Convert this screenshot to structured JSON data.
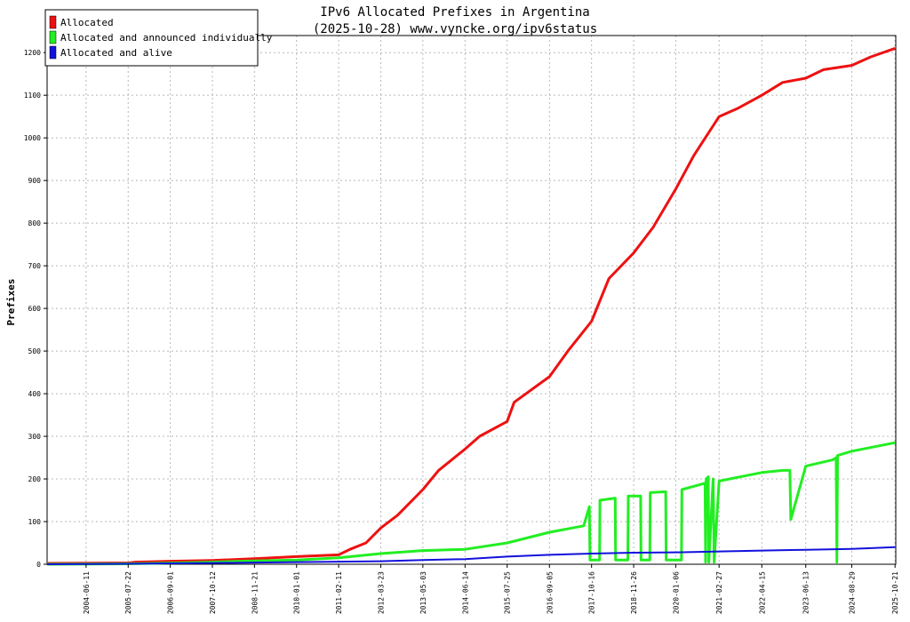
{
  "chart_data": {
    "type": "line",
    "title": "IPv6 Allocated Prefixes in Argentina",
    "subtitle": "(2025-10-28) www.vyncke.org/ipv6status",
    "ylabel": "Prefixes",
    "xlabel": "",
    "ylim": [
      0,
      1240
    ],
    "xlim": [
      "2003-06-01",
      "2025-10-28"
    ],
    "yticks": [
      0,
      100,
      200,
      300,
      400,
      500,
      600,
      700,
      800,
      900,
      1000,
      1100,
      1200
    ],
    "xticks": [
      "2004-06-11",
      "2005-07-22",
      "2006-09-01",
      "2007-10-12",
      "2008-11-21",
      "2010-01-01",
      "2011-02-11",
      "2012-03-23",
      "2013-05-03",
      "2014-06-14",
      "2015-07-25",
      "2016-09-05",
      "2017-10-16",
      "2018-11-26",
      "2020-01-06",
      "2021-02-27",
      "2022-04-15",
      "2023-06-13",
      "2024-08-29",
      "2025-10-21"
    ],
    "grid": true,
    "legend_position": "top-left",
    "series": [
      {
        "name": "Allocated",
        "color": "#ee1111",
        "x": [
          "2003-06-01",
          "2005-07-22",
          "2005-10-01",
          "2006-09-01",
          "2007-10-12",
          "2008-11-21",
          "2010-01-01",
          "2011-02-11",
          "2011-06-01",
          "2011-11-01",
          "2012-03-23",
          "2012-09-01",
          "2013-05-03",
          "2013-10-01",
          "2014-06-14",
          "2014-11-01",
          "2015-07-25",
          "2015-10-01",
          "2016-09-05",
          "2017-03-01",
          "2017-10-16",
          "2018-04-01",
          "2018-11-26",
          "2019-06-01",
          "2020-01-06",
          "2020-07-01",
          "2021-02-27",
          "2021-09-01",
          "2022-04-15",
          "2022-11-01",
          "2023-06-13",
          "2023-12-01",
          "2024-08-29",
          "2025-03-01",
          "2025-10-21"
        ],
        "values": [
          2,
          3,
          5,
          7,
          9,
          13,
          18,
          22,
          35,
          50,
          85,
          115,
          175,
          220,
          270,
          300,
          335,
          380,
          440,
          500,
          570,
          670,
          730,
          790,
          880,
          960,
          1050,
          1070,
          1100,
          1130,
          1140,
          1160,
          1170,
          1190,
          1210
        ]
      },
      {
        "name": "Allocated and announced individually",
        "color": "#22ee22",
        "x": [
          "2003-06-01",
          "2005-07-22",
          "2006-09-01",
          "2007-10-12",
          "2008-11-21",
          "2010-01-01",
          "2011-02-11",
          "2012-03-23",
          "2013-05-03",
          "2014-06-14",
          "2015-07-25",
          "2016-09-05",
          "2017-08-01",
          "2017-09-25",
          "2017-10-01",
          "2017-10-10",
          "2018-01-01",
          "2018-01-05",
          "2018-06-01",
          "2018-06-05",
          "2018-10-01",
          "2018-10-05",
          "2019-02-01",
          "2019-02-05",
          "2019-05-01",
          "2019-05-05",
          "2019-10-01",
          "2019-10-05",
          "2020-03-01",
          "2020-03-05",
          "2020-10-15",
          "2020-10-20",
          "2020-10-25",
          "2020-11-15",
          "2020-11-20",
          "2021-01-01",
          "2021-01-10",
          "2021-02-27",
          "2022-01-01",
          "2022-04-15",
          "2022-11-01",
          "2023-01-10",
          "2023-01-20",
          "2023-06-13",
          "2024-03-01",
          "2024-04-01",
          "2024-04-08",
          "2024-04-15",
          "2024-08-29",
          "2025-10-21"
        ],
        "values": [
          0,
          1,
          3,
          5,
          8,
          10,
          15,
          25,
          32,
          35,
          50,
          75,
          90,
          135,
          10,
          10,
          10,
          150,
          155,
          10,
          10,
          160,
          160,
          10,
          10,
          168,
          170,
          10,
          10,
          175,
          190,
          5,
          200,
          205,
          5,
          200,
          5,
          195,
          210,
          215,
          220,
          220,
          105,
          230,
          245,
          250,
          5,
          255,
          265,
          285
        ]
      },
      {
        "name": "Allocated and alive",
        "color": "#1111dd",
        "x": [
          "2003-06-01",
          "2005-07-22",
          "2006-09-01",
          "2007-10-12",
          "2008-11-21",
          "2010-01-01",
          "2011-02-11",
          "2012-03-23",
          "2013-05-03",
          "2014-06-14",
          "2015-07-25",
          "2016-09-05",
          "2017-10-16",
          "2018-11-26",
          "2020-01-06",
          "2021-02-27",
          "2022-04-15",
          "2023-06-13",
          "2024-08-29",
          "2025-10-21"
        ],
        "values": [
          0,
          1,
          2,
          3,
          4,
          5,
          6,
          7,
          10,
          12,
          18,
          22,
          25,
          27,
          28,
          30,
          32,
          34,
          36,
          40
        ]
      }
    ]
  }
}
